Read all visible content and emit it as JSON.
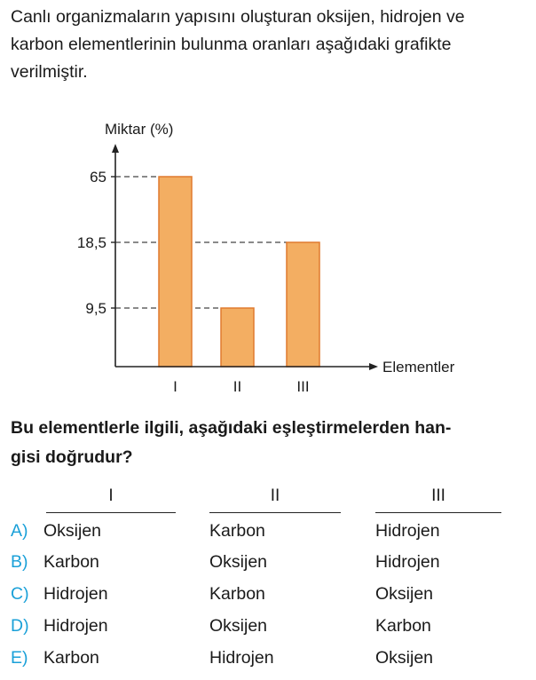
{
  "intro": {
    "line1": "Canlı organizmaların yapısını oluşturan oksijen, hidrojen ve",
    "line2": "karbon elementlerinin bulunma oranları aşağıdaki grafikte",
    "line3": "verilmiştir."
  },
  "chart_data": {
    "type": "bar",
    "categories": [
      "I",
      "II",
      "III"
    ],
    "values": [
      65,
      9.5,
      18.5
    ],
    "ytick_labels": [
      "9,5",
      "18,5",
      "65"
    ],
    "ytick_values": [
      9.5,
      18.5,
      65
    ],
    "xlabel": "Elementler",
    "ylabel": "Miktar (%)",
    "title": "",
    "axis_scale": "non-linear (categorical tick spacing)",
    "grid": false,
    "reference_lines": "dashed",
    "colors": {
      "bar_fill": "#f3ae62",
      "bar_stroke": "#e07a2e",
      "axis": "#222222",
      "dash": "#444444"
    }
  },
  "question": {
    "line1": "Bu elementlerle ilgili, aşağıdaki eşleştirmelerden han-",
    "line2": "gisi doğrudur?"
  },
  "answers": {
    "headers": [
      "I",
      "II",
      "III"
    ],
    "options": [
      {
        "letter": "A)",
        "values": [
          "Oksijen",
          "Karbon",
          "Hidrojen"
        ]
      },
      {
        "letter": "B)",
        "values": [
          "Karbon",
          "Oksijen",
          "Hidrojen"
        ]
      },
      {
        "letter": "C)",
        "values": [
          "Hidrojen",
          "Karbon",
          "Oksijen"
        ]
      },
      {
        "letter": "D)",
        "values": [
          "Hidrojen",
          "Oksijen",
          "Karbon"
        ]
      },
      {
        "letter": "E)",
        "values": [
          "Karbon",
          "Hidrojen",
          "Oksijen"
        ]
      }
    ],
    "letter_color": "#1aa0d8"
  }
}
